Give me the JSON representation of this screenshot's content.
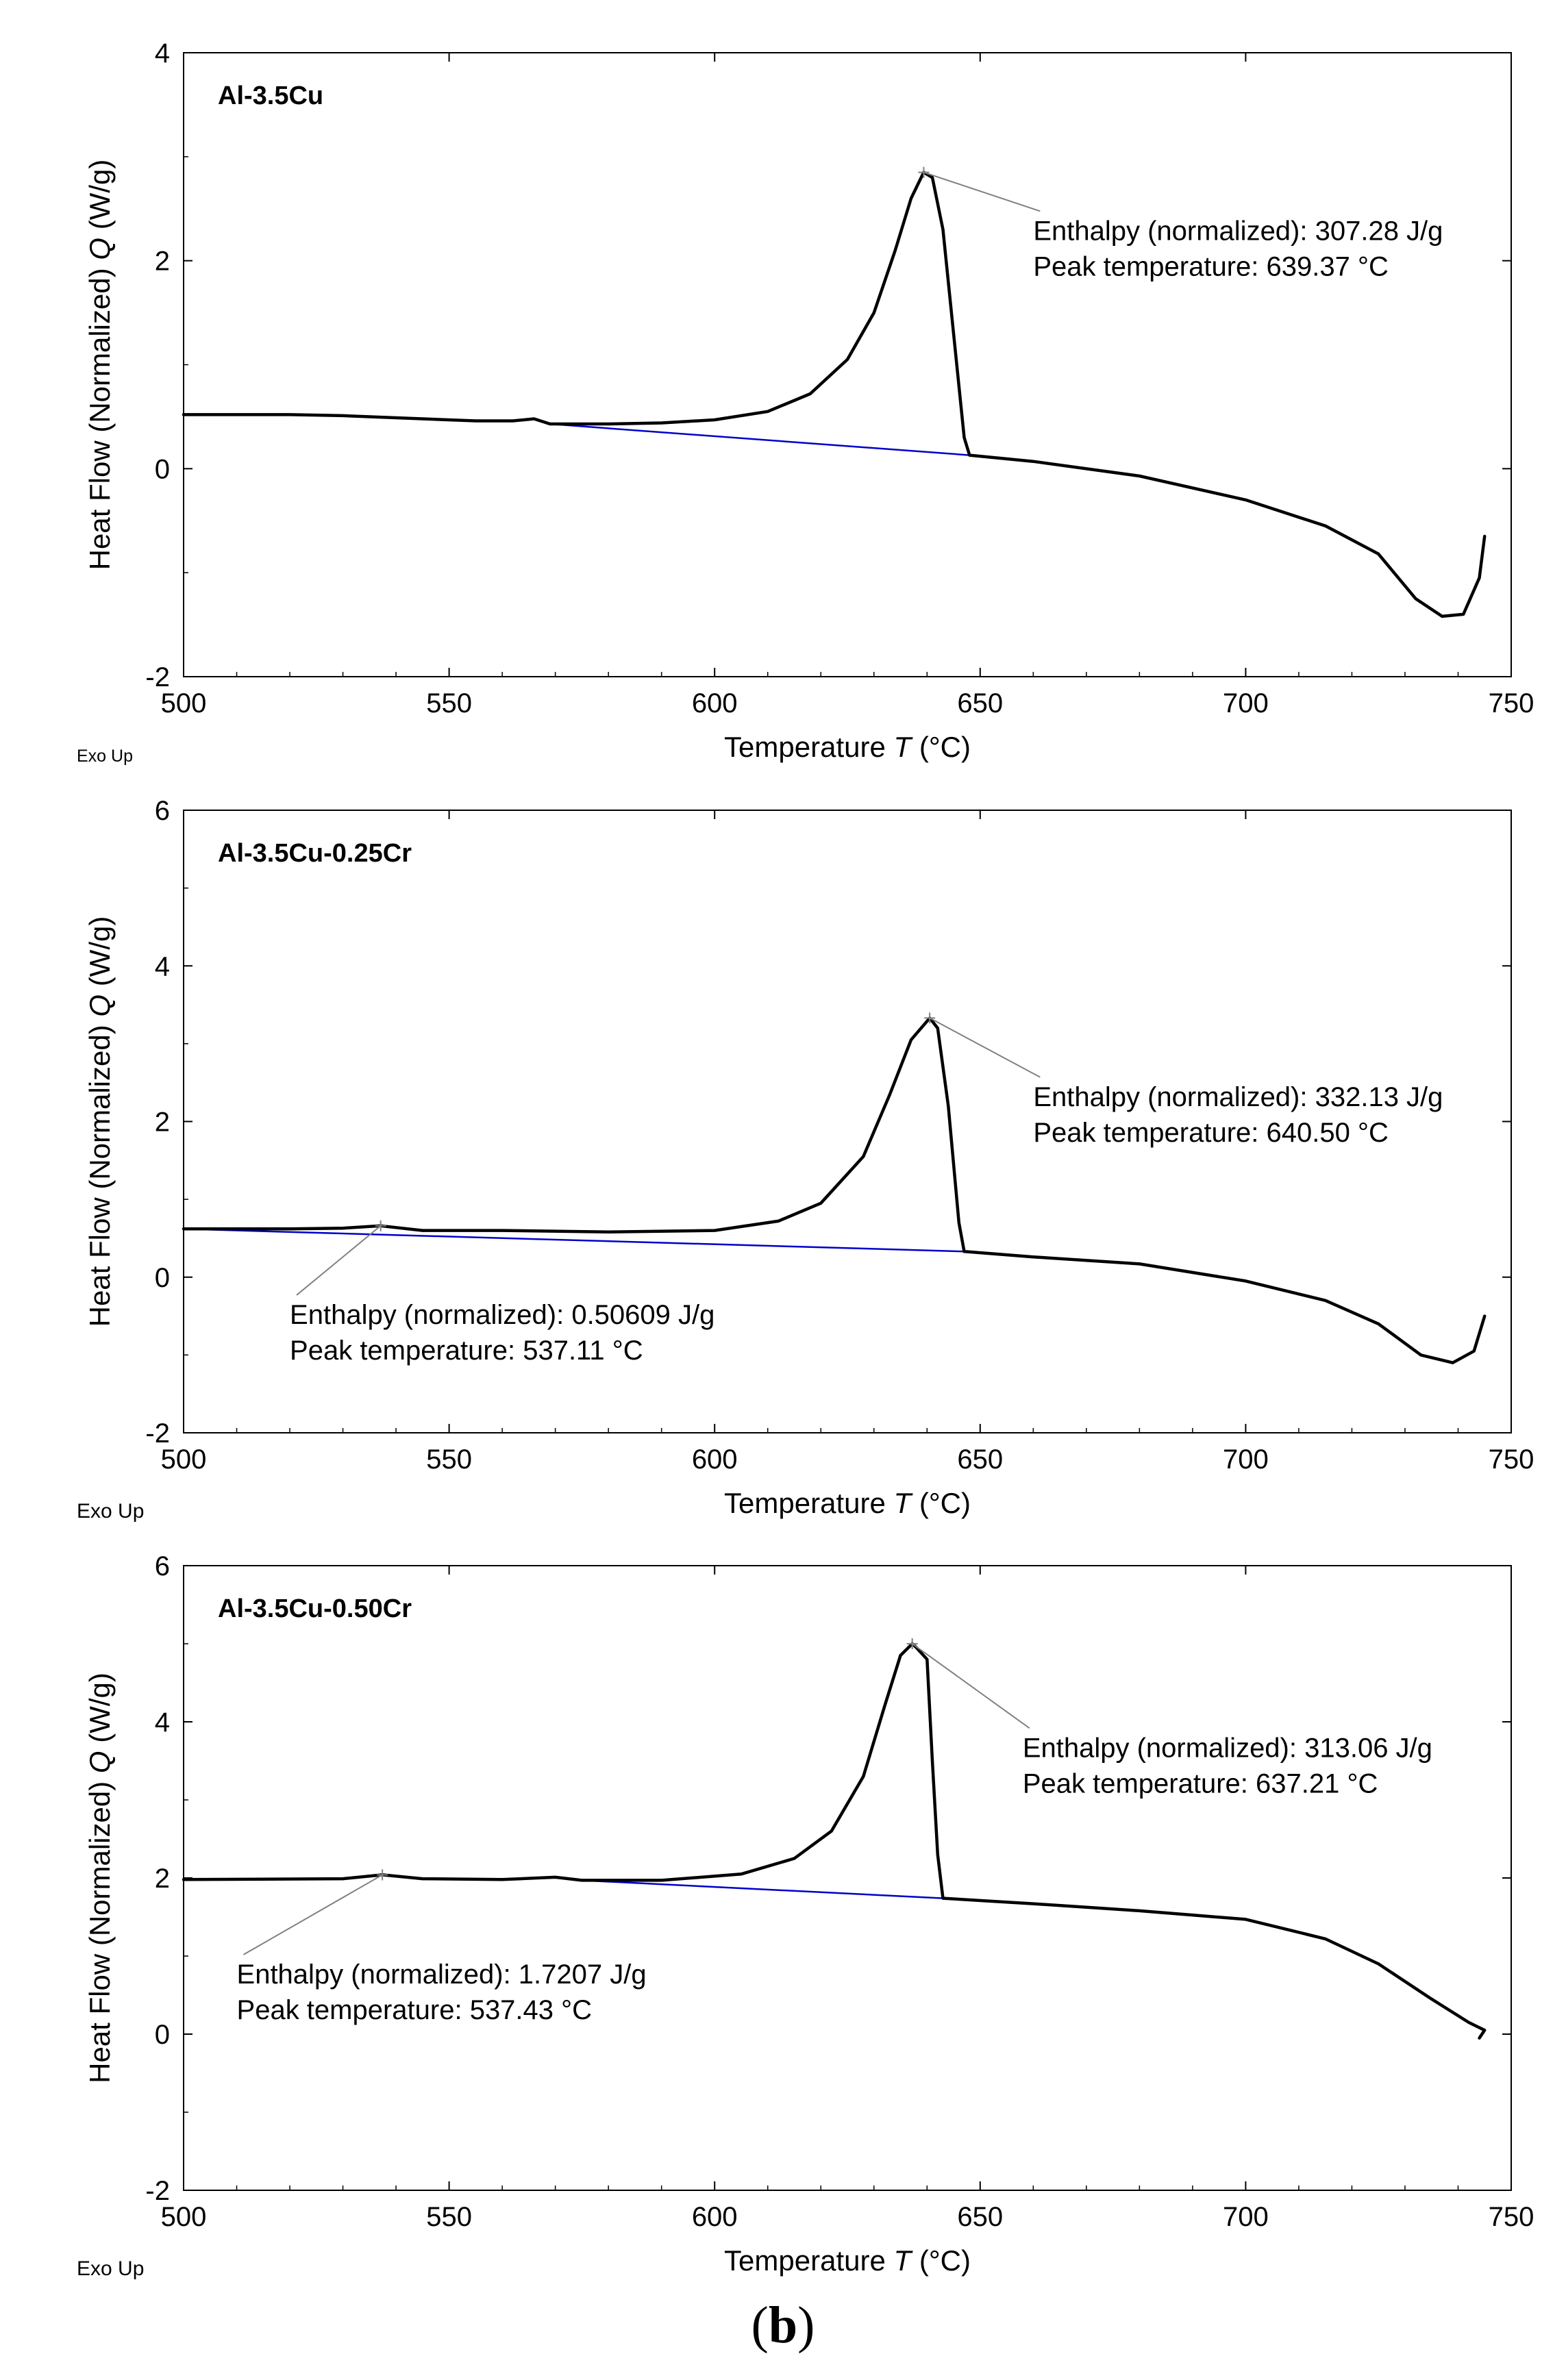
{
  "caption": {
    "open": "(",
    "letter": "b",
    "close": ")"
  },
  "chart_data": [
    {
      "type": "line",
      "title": "Al-3.5Cu",
      "xlabel": "Temperature",
      "xlabel_var": "T",
      "xlabel_unit": "(°C)",
      "ylabel": "Heat Flow (Normalized)",
      "ylabel_var": "Q",
      "ylabel_unit": "(W/g)",
      "corner_label": "Exo Up",
      "xlim": [
        500,
        750
      ],
      "ylim": [
        -2,
        4
      ],
      "xticks": [
        500,
        550,
        600,
        650,
        700,
        750
      ],
      "yticks": [
        -2,
        0,
        2,
        4
      ],
      "grid": false,
      "colors": {
        "curve": "#000000",
        "baseline": "#0000cc",
        "leader": "#808080"
      },
      "curve": [
        [
          500,
          0.52
        ],
        [
          520,
          0.52
        ],
        [
          530,
          0.51
        ],
        [
          545,
          0.48
        ],
        [
          555,
          0.46
        ],
        [
          562,
          0.46
        ],
        [
          566,
          0.48
        ],
        [
          569,
          0.43
        ],
        [
          580,
          0.43
        ],
        [
          590,
          0.44
        ],
        [
          600,
          0.47
        ],
        [
          610,
          0.55
        ],
        [
          618,
          0.72
        ],
        [
          625,
          1.05
        ],
        [
          630,
          1.5
        ],
        [
          634,
          2.1
        ],
        [
          637,
          2.6
        ],
        [
          639.37,
          2.85
        ],
        [
          641,
          2.8
        ],
        [
          643,
          2.3
        ],
        [
          645,
          1.3
        ],
        [
          647,
          0.3
        ],
        [
          648,
          0.13
        ],
        [
          660,
          0.07
        ],
        [
          680,
          -0.07
        ],
        [
          700,
          -0.3
        ],
        [
          715,
          -0.55
        ],
        [
          725,
          -0.82
        ],
        [
          732,
          -1.25
        ],
        [
          737,
          -1.42
        ],
        [
          741,
          -1.4
        ],
        [
          744,
          -1.05
        ],
        [
          745,
          -0.65
        ]
      ],
      "baseline": [
        [
          569,
          0.43
        ],
        [
          648,
          0.13
        ]
      ],
      "annotations": [
        {
          "peak": [
            639.37,
            2.85
          ],
          "text_at": [
            660,
            2.2
          ],
          "lines": [
            "Enthalpy (normalized): 307.28 J/g",
            "Peak temperature: 639.37 °C"
          ]
        }
      ]
    },
    {
      "type": "line",
      "title": "Al-3.5Cu-0.25Cr",
      "xlabel": "Temperature",
      "xlabel_var": "T",
      "xlabel_unit": "(°C)",
      "ylabel": "Heat Flow (Normalized)",
      "ylabel_var": "Q",
      "ylabel_unit": "(W/g)",
      "corner_label": "Exo Up",
      "xlim": [
        500,
        750
      ],
      "ylim": [
        -2,
        6
      ],
      "xticks": [
        500,
        550,
        600,
        650,
        700,
        750
      ],
      "yticks": [
        -2,
        0,
        2,
        4,
        6
      ],
      "grid": false,
      "colors": {
        "curve": "#000000",
        "baseline": "#0000cc",
        "leader": "#808080"
      },
      "curve": [
        [
          500,
          0.62
        ],
        [
          520,
          0.62
        ],
        [
          530,
          0.63
        ],
        [
          537.11,
          0.66
        ],
        [
          545,
          0.6
        ],
        [
          560,
          0.6
        ],
        [
          580,
          0.58
        ],
        [
          600,
          0.6
        ],
        [
          612,
          0.72
        ],
        [
          620,
          0.95
        ],
        [
          628,
          1.55
        ],
        [
          633,
          2.35
        ],
        [
          637,
          3.05
        ],
        [
          640.5,
          3.33
        ],
        [
          642,
          3.2
        ],
        [
          644,
          2.2
        ],
        [
          646,
          0.7
        ],
        [
          647,
          0.33
        ],
        [
          660,
          0.26
        ],
        [
          680,
          0.17
        ],
        [
          700,
          -0.05
        ],
        [
          715,
          -0.3
        ],
        [
          725,
          -0.6
        ],
        [
          733,
          -1.0
        ],
        [
          739,
          -1.1
        ],
        [
          743,
          -0.95
        ],
        [
          745,
          -0.5
        ]
      ],
      "baseline": [
        [
          500,
          0.62
        ],
        [
          647,
          0.33
        ]
      ],
      "annotations": [
        {
          "peak": [
            640.5,
            3.33
          ],
          "text_at": [
            660,
            2.2
          ],
          "lines": [
            "Enthalpy (normalized): 332.13 J/g",
            "Peak temperature: 640.50 °C"
          ]
        },
        {
          "peak": [
            537.11,
            0.66
          ],
          "text_at": [
            520,
            -0.6
          ],
          "lines": [
            "Enthalpy (normalized): 0.50609 J/g",
            "Peak temperature: 537.11 °C"
          ]
        }
      ]
    },
    {
      "type": "line",
      "title": "Al-3.5Cu-0.50Cr",
      "xlabel": "Temperature",
      "xlabel_var": "T",
      "xlabel_unit": "(°C)",
      "ylabel": "Heat Flow (Normalized)",
      "ylabel_var": "Q",
      "ylabel_unit": "(W/g)",
      "corner_label": "Exo Up",
      "xlim": [
        500,
        750
      ],
      "ylim": [
        -2,
        6
      ],
      "xticks": [
        500,
        550,
        600,
        650,
        700,
        750
      ],
      "yticks": [
        -2,
        0,
        2,
        4,
        6
      ],
      "grid": false,
      "colors": {
        "curve": "#000000",
        "baseline": "#0000cc",
        "leader": "#808080"
      },
      "curve": [
        [
          500,
          1.98
        ],
        [
          530,
          1.99
        ],
        [
          537.43,
          2.04
        ],
        [
          545,
          1.99
        ],
        [
          560,
          1.98
        ],
        [
          570,
          2.01
        ],
        [
          575,
          1.97
        ],
        [
          590,
          1.97
        ],
        [
          605,
          2.05
        ],
        [
          615,
          2.25
        ],
        [
          622,
          2.6
        ],
        [
          628,
          3.3
        ],
        [
          632,
          4.2
        ],
        [
          635,
          4.85
        ],
        [
          637.21,
          5.0
        ],
        [
          638,
          4.95
        ],
        [
          640,
          4.8
        ],
        [
          641,
          3.5
        ],
        [
          642,
          2.3
        ],
        [
          643,
          1.74
        ],
        [
          660,
          1.67
        ],
        [
          680,
          1.58
        ],
        [
          700,
          1.47
        ],
        [
          715,
          1.22
        ],
        [
          725,
          0.9
        ],
        [
          735,
          0.45
        ],
        [
          742,
          0.15
        ],
        [
          745,
          0.05
        ],
        [
          744,
          -0.05
        ]
      ],
      "baseline": [
        [
          575,
          1.97
        ],
        [
          643,
          1.74
        ]
      ],
      "annotations": [
        {
          "peak": [
            637.21,
            5.0
          ],
          "text_at": [
            658,
            3.55
          ],
          "lines": [
            "Enthalpy (normalized): 313.06 J/g",
            "Peak temperature: 637.21 °C"
          ]
        },
        {
          "peak": [
            537.43,
            2.04
          ],
          "text_at": [
            510,
            0.65
          ],
          "lines": [
            "Enthalpy (normalized): 1.7207 J/g",
            "Peak temperature: 537.43 °C"
          ]
        }
      ]
    }
  ]
}
